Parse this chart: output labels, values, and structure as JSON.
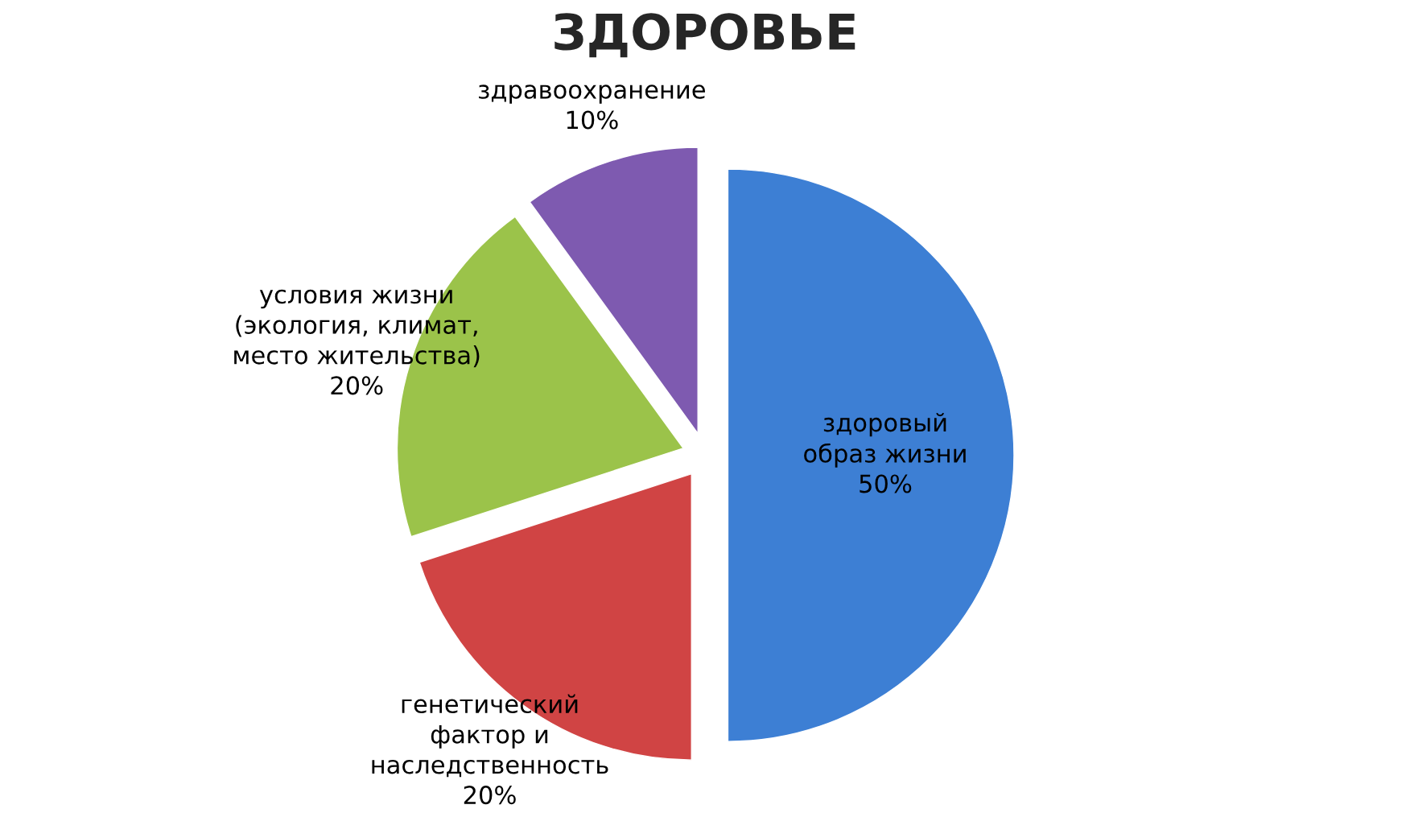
{
  "chart_data": {
    "type": "pie",
    "title": "ЗДОРОВЬЕ",
    "categories": [
      "здоровый\nобраз жизни",
      "генетический\nфактор и\nнаследственность",
      "условия жизни\n(экология, климат,\nместо жительства)",
      "здравоохранение"
    ],
    "values": [
      50,
      20,
      20,
      10
    ],
    "value_labels": [
      "50%",
      "20%",
      "20%",
      "10%"
    ],
    "colors": [
      "#3d7fd4",
      "#d04444",
      "#9bc34a",
      "#7e5ab0"
    ],
    "legend": false
  }
}
